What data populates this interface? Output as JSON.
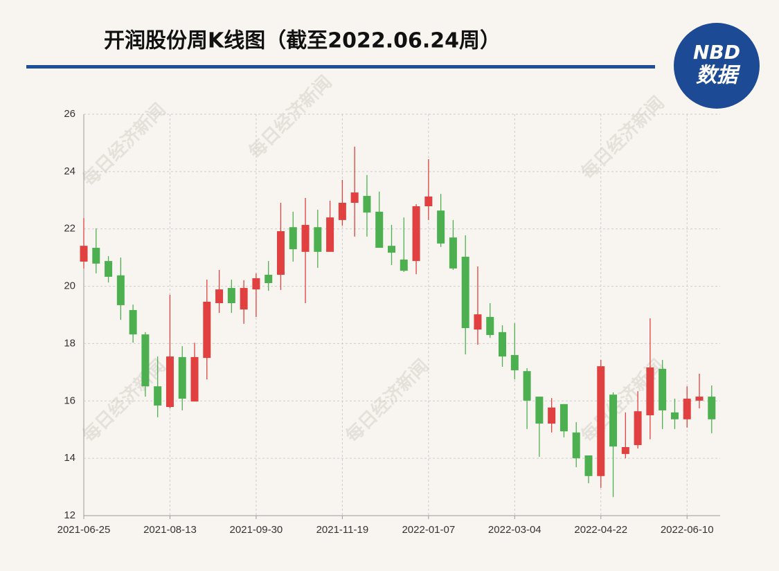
{
  "logo": {
    "top": "NBD",
    "bottom": "数据"
  },
  "chart_data": {
    "type": "candlestick",
    "title": "开润股份周K线图（截至2022.06.24周）",
    "watermark": "每日经济新闻",
    "categories": [
      "2021-06-25",
      null,
      null,
      null,
      null,
      null,
      null,
      "2021-08-13",
      null,
      null,
      null,
      null,
      null,
      null,
      "2021-09-30",
      null,
      null,
      null,
      null,
      null,
      null,
      "2021-11-19",
      null,
      null,
      null,
      null,
      null,
      null,
      "2022-01-07",
      null,
      null,
      null,
      null,
      null,
      null,
      "2022-03-04",
      null,
      null,
      null,
      null,
      null,
      null,
      "2022-04-22",
      null,
      null,
      null,
      null,
      null,
      null,
      "2022-06-10",
      null,
      null
    ],
    "open": [
      20.86,
      21.34,
      20.88,
      20.38,
      19.17,
      18.32,
      16.51,
      15.79,
      17.53,
      15.98,
      17.5,
      19.41,
      19.94,
      19.19,
      19.89,
      20.4,
      20.4,
      22.06,
      21.2,
      22.06,
      21.2,
      22.31,
      22.91,
      23.15,
      22.6,
      21.41,
      20.93,
      20.88,
      22.79,
      22.64,
      21.7,
      21.03,
      18.49,
      18.93,
      18.4,
      17.6,
      17.04,
      16.15,
      15.21,
      15.89,
      14.9,
      14.1,
      13.38,
      16.22,
      14.15,
      14.46,
      15.5,
      17.12,
      15.6,
      15.36,
      16.01,
      16.15
    ],
    "high": [
      22.38,
      22.02,
      21.05,
      21.0,
      19.36,
      18.4,
      17.55,
      19.7,
      17.91,
      18.03,
      20.23,
      20.57,
      20.23,
      20.21,
      20.45,
      20.88,
      22.91,
      22.6,
      23.08,
      22.67,
      22.98,
      23.71,
      24.87,
      23.88,
      23.3,
      22.14,
      22.4,
      22.86,
      24.43,
      23.22,
      22.31,
      21.78,
      20.69,
      19.41,
      18.64,
      18.71,
      17.14,
      16.15,
      16.1,
      15.89,
      15.26,
      14.1,
      17.43,
      16.3,
      15.6,
      16.34,
      18.88,
      17.43,
      16.08,
      16.51,
      16.95,
      16.54
    ],
    "low": [
      20.62,
      20.45,
      20.13,
      18.83,
      18.03,
      16.15,
      15.43,
      15.74,
      15.67,
      15.98,
      16.75,
      19.07,
      19.07,
      18.69,
      18.93,
      19.84,
      19.87,
      20.86,
      19.41,
      20.64,
      21.2,
      22.11,
      21.73,
      21.73,
      21.34,
      20.74,
      20.5,
      20.42,
      22.31,
      21.37,
      20.57,
      17.62,
      17.96,
      18.2,
      17.19,
      16.75,
      15.02,
      14.05,
      14.9,
      14.73,
      13.69,
      13.13,
      12.97,
      12.65,
      14.0,
      14.34,
      14.66,
      15.02,
      15.02,
      15.07,
      15.74,
      14.87
    ],
    "close": [
      21.41,
      20.79,
      20.33,
      19.34,
      18.32,
      16.51,
      15.84,
      17.55,
      16.08,
      17.53,
      19.46,
      19.89,
      19.41,
      19.94,
      20.28,
      20.11,
      21.92,
      21.29,
      22.14,
      21.2,
      22.4,
      22.91,
      23.27,
      22.57,
      21.34,
      21.17,
      20.54,
      22.79,
      23.13,
      21.49,
      20.62,
      18.54,
      19.02,
      18.3,
      17.55,
      17.07,
      16.01,
      15.21,
      15.77,
      14.94,
      14.0,
      13.38,
      17.21,
      14.41,
      14.39,
      15.64,
      17.17,
      15.67,
      15.36,
      16.08,
      16.15,
      15.36
    ],
    "up_color": "#e0403f",
    "down_color": "#4caf50",
    "ylim": [
      12,
      26
    ],
    "yticks": [
      12,
      14,
      16,
      18,
      20,
      22,
      24,
      26
    ],
    "grid": true
  }
}
